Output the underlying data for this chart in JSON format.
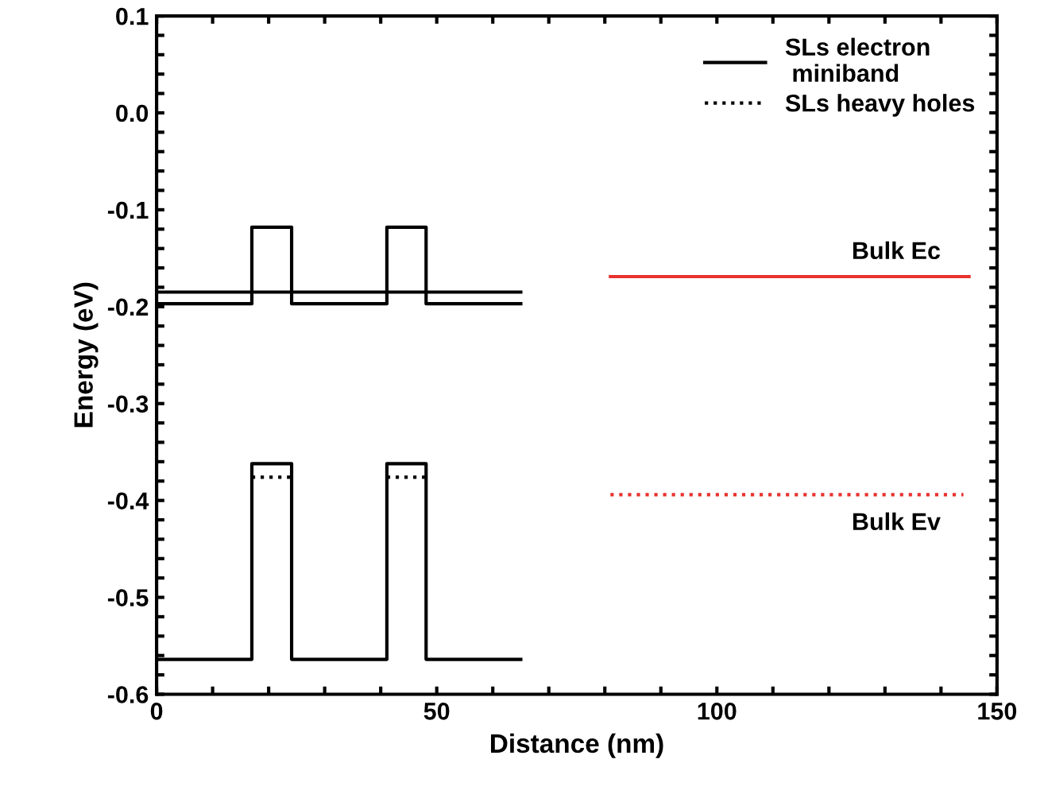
{
  "chart_data": {
    "type": "line",
    "xlabel": "Distance (nm)",
    "ylabel": "Energy (eV)",
    "xlim": [
      0,
      150
    ],
    "ylim": [
      -0.6,
      0.1
    ],
    "xticks": [
      0,
      {
        "value": 10,
        "label": null
      },
      {
        "value": 20,
        "label": null
      },
      {
        "value": 30,
        "label": null
      },
      {
        "value": 40,
        "label": null
      },
      50,
      {
        "value": 60,
        "label": null
      },
      {
        "value": 70,
        "label": null
      },
      {
        "value": 80,
        "label": null
      },
      {
        "value": 90,
        "label": null
      },
      100,
      {
        "value": 110,
        "label": null
      },
      {
        "value": 120,
        "label": null
      },
      {
        "value": 130,
        "label": null
      },
      {
        "value": 140,
        "label": null
      },
      150
    ],
    "yticks": [
      {
        "value": -0.6,
        "label": "-0.6"
      },
      {
        "value": -0.58,
        "label": null
      },
      {
        "value": -0.56,
        "label": null
      },
      {
        "value": -0.54,
        "label": null
      },
      {
        "value": -0.52,
        "label": null
      },
      {
        "value": -0.5,
        "label": "-0.5"
      },
      {
        "value": -0.48,
        "label": null
      },
      {
        "value": -0.46,
        "label": null
      },
      {
        "value": -0.44,
        "label": null
      },
      {
        "value": -0.42,
        "label": null
      },
      {
        "value": -0.4,
        "label": "-0.4"
      },
      {
        "value": -0.38,
        "label": null
      },
      {
        "value": -0.36,
        "label": null
      },
      {
        "value": -0.34,
        "label": null
      },
      {
        "value": -0.32,
        "label": null
      },
      {
        "value": -0.3,
        "label": "-0.3"
      },
      {
        "value": -0.28,
        "label": null
      },
      {
        "value": -0.26,
        "label": null
      },
      {
        "value": -0.24,
        "label": null
      },
      {
        "value": -0.22,
        "label": null
      },
      {
        "value": -0.2,
        "label": "-0.2"
      },
      {
        "value": -0.18,
        "label": null
      },
      {
        "value": -0.16,
        "label": null
      },
      {
        "value": -0.14,
        "label": null
      },
      {
        "value": -0.12,
        "label": null
      },
      {
        "value": -0.1,
        "label": "-0.1"
      },
      {
        "value": -0.08,
        "label": null
      },
      {
        "value": -0.06,
        "label": null
      },
      {
        "value": -0.04,
        "label": null
      },
      {
        "value": -0.02,
        "label": null
      },
      {
        "value": 0.0,
        "label": "0.0"
      },
      {
        "value": 0.02,
        "label": null
      },
      {
        "value": 0.04,
        "label": null
      },
      {
        "value": 0.06,
        "label": null
      },
      {
        "value": 0.08,
        "label": null
      },
      {
        "value": 0.1,
        "label": "0.1"
      }
    ],
    "grid": false,
    "legend": "top right",
    "marker": "none",
    "series": [
      {
        "name": "SLs electron\n miniband",
        "color": "#000000",
        "line_style": "solid",
        "x": [
          0,
          65
        ],
        "values": [
          -0.185,
          -0.185
        ]
      },
      {
        "name": "SLs heavy holes",
        "color": "#000000",
        "line_style": "dotted",
        "x": [
          17,
          24.1,
          24.2,
          41.1,
          48.1
        ],
        "values": [
          -0.376,
          -0.376,
          null,
          -0.376,
          -0.376
        ]
      },
      {
        "color": "#000000",
        "line_style": "solid",
        "x": [
          0,
          17,
          17,
          24.1,
          24.1,
          41.1,
          41.1,
          48.1,
          48.1,
          65
        ],
        "values": [
          -0.197,
          -0.197,
          -0.118,
          -0.118,
          -0.197,
          -0.197,
          -0.118,
          -0.118,
          -0.197,
          -0.197
        ]
      },
      {
        "color": "#000000",
        "line_style": "solid",
        "x": [
          0,
          17,
          17,
          24.1,
          24.1,
          41.1,
          41.1,
          48.1,
          48.1,
          65
        ],
        "values": [
          -0.564,
          -0.564,
          -0.362,
          -0.362,
          -0.564,
          -0.564,
          -0.362,
          -0.362,
          -0.564,
          -0.564
        ]
      },
      {
        "color": "#e8322e",
        "line_style": "solid",
        "x": [
          81,
          145
        ],
        "values": [
          -0.169,
          -0.169
        ]
      },
      {
        "color": "#e8322e",
        "line_style": "dotted",
        "x": [
          81,
          144
        ],
        "values": [
          -0.394,
          -0.394
        ]
      }
    ],
    "annotations": [
      {
        "text": "Bulk Ec",
        "x": 132,
        "y": -0.169
      },
      {
        "text": "Bulk Ev",
        "x": 132,
        "y": -0.394
      }
    ]
  }
}
